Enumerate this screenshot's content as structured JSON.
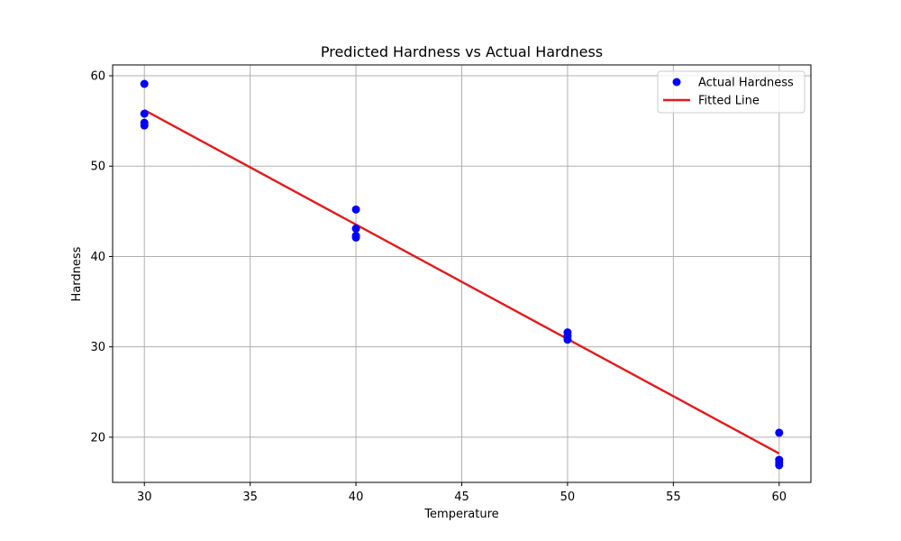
{
  "chart_data": {
    "type": "scatter",
    "title": "Predicted Hardness vs Actual Hardness",
    "xlabel": "Temperature",
    "ylabel": "Hardness",
    "xlim": [
      28.5,
      61.5
    ],
    "ylim": [
      15.0,
      61.2
    ],
    "xticks": [
      30,
      35,
      40,
      45,
      50,
      55,
      60
    ],
    "yticks": [
      20,
      30,
      40,
      50,
      60
    ],
    "grid": true,
    "legend_position": "top-right",
    "series": [
      {
        "name": "Actual Hardness",
        "kind": "scatter",
        "color": "#0000ff",
        "points": [
          {
            "x": 30,
            "y": 59.1
          },
          {
            "x": 30,
            "y": 55.8
          },
          {
            "x": 30,
            "y": 54.8
          },
          {
            "x": 30,
            "y": 54.5
          },
          {
            "x": 40,
            "y": 45.2
          },
          {
            "x": 40,
            "y": 43.1
          },
          {
            "x": 40,
            "y": 42.3
          },
          {
            "x": 40,
            "y": 42.1
          },
          {
            "x": 50,
            "y": 31.6
          },
          {
            "x": 50,
            "y": 31.2
          },
          {
            "x": 50,
            "y": 30.8
          },
          {
            "x": 60,
            "y": 20.5
          },
          {
            "x": 60,
            "y": 17.5
          },
          {
            "x": 60,
            "y": 17.2
          },
          {
            "x": 60,
            "y": 16.9
          }
        ]
      },
      {
        "name": "Fitted Line",
        "kind": "line",
        "color": "#e41a1c",
        "points": [
          {
            "x": 30,
            "y": 56.2
          },
          {
            "x": 60,
            "y": 18.2
          }
        ]
      }
    ]
  }
}
